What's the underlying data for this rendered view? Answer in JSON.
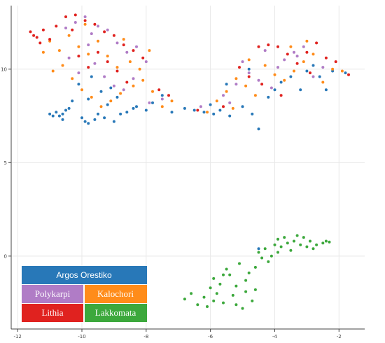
{
  "chart_data": {
    "type": "scatter",
    "title": "",
    "xlabel": "",
    "ylabel": "",
    "xlim": [
      -12.2,
      -1.2
    ],
    "ylim": [
      -3.9,
      13.4
    ],
    "grid": true,
    "x_ticks": [
      -12,
      -10,
      -8,
      -6,
      -4,
      -2
    ],
    "y_ticks": [
      0,
      5,
      10
    ],
    "x_tick_labels": [
      "-12",
      "-10",
      "-8",
      "-6",
      "-4",
      "-2"
    ],
    "y_tick_labels": [
      "0",
      "5",
      "10"
    ],
    "legend": {
      "placement": "bottom-left",
      "entries": [
        {
          "label": "Argos Orestiko",
          "color": "#2878b8"
        },
        {
          "label": "Polykarpi",
          "color": "#b07cc6"
        },
        {
          "label": "Kalochori",
          "color": "#ff8c1a"
        },
        {
          "label": "Lithia",
          "color": "#e0221f"
        },
        {
          "label": "Lakkomata",
          "color": "#3ca83c"
        }
      ]
    },
    "series": [
      {
        "name": "Argos Orestiko",
        "color": "#2878b8",
        "points": [
          [
            -11.0,
            7.6
          ],
          [
            -10.8,
            7.7
          ],
          [
            -10.9,
            7.5
          ],
          [
            -10.7,
            7.5
          ],
          [
            -10.6,
            7.6
          ],
          [
            -10.5,
            7.8
          ],
          [
            -10.4,
            7.9
          ],
          [
            -10.0,
            7.4
          ],
          [
            -9.9,
            7.2
          ],
          [
            -9.8,
            7.1
          ],
          [
            -9.6,
            7.3
          ],
          [
            -9.5,
            7.6
          ],
          [
            -9.3,
            7.4
          ],
          [
            -9.0,
            7.2
          ],
          [
            -8.8,
            7.6
          ],
          [
            -8.6,
            7.7
          ],
          [
            -8.3,
            8.0
          ],
          [
            -8.0,
            7.8
          ],
          [
            -9.2,
            8.1
          ],
          [
            -9.8,
            8.4
          ],
          [
            -10.1,
            9.2
          ],
          [
            -9.4,
            8.8
          ],
          [
            -9.1,
            9.0
          ],
          [
            -8.4,
            7.9
          ],
          [
            -7.8,
            8.2
          ],
          [
            -7.5,
            8.6
          ],
          [
            -7.2,
            7.7
          ],
          [
            -6.8,
            7.9
          ],
          [
            -6.5,
            7.8
          ],
          [
            -6.2,
            7.7
          ],
          [
            -5.9,
            7.6
          ],
          [
            -5.7,
            7.8
          ],
          [
            -5.4,
            7.5
          ],
          [
            -5.0,
            8.0
          ],
          [
            -4.7,
            7.6
          ],
          [
            -4.5,
            6.8
          ],
          [
            -4.2,
            8.5
          ],
          [
            -4.0,
            8.9
          ],
          [
            -3.8,
            9.3
          ],
          [
            -3.5,
            9.6
          ],
          [
            -3.2,
            8.9
          ],
          [
            -3.0,
            9.9
          ],
          [
            -2.8,
            10.2
          ],
          [
            -2.6,
            9.6
          ],
          [
            -2.4,
            8.9
          ],
          [
            -2.2,
            9.9
          ],
          [
            -1.8,
            9.8
          ],
          [
            -4.5,
            0.4
          ],
          [
            -4.8,
            10.0
          ],
          [
            -5.5,
            9.2
          ],
          [
            -6.0,
            8.1
          ],
          [
            -9.7,
            9.6
          ],
          [
            -10.3,
            8.3
          ],
          [
            -8.9,
            8.5
          ],
          [
            -10.6,
            7.3
          ]
        ]
      },
      {
        "name": "Polykarpi",
        "color": "#b07cc6",
        "points": [
          [
            -10.5,
            12.2
          ],
          [
            -10.2,
            12.5
          ],
          [
            -9.9,
            12.8
          ],
          [
            -9.7,
            11.9
          ],
          [
            -9.5,
            12.3
          ],
          [
            -9.2,
            12.1
          ],
          [
            -8.9,
            11.4
          ],
          [
            -8.6,
            10.9
          ],
          [
            -8.3,
            11.2
          ],
          [
            -8.0,
            10.4
          ],
          [
            -9.6,
            10.3
          ],
          [
            -9.3,
            9.6
          ],
          [
            -9.0,
            9.1
          ],
          [
            -8.7,
            8.9
          ],
          [
            -10.1,
            9.8
          ],
          [
            -10.4,
            10.6
          ],
          [
            -7.9,
            8.2
          ],
          [
            -7.5,
            8.4
          ],
          [
            -6.3,
            8.0
          ],
          [
            -5.6,
            8.6
          ],
          [
            -5.2,
            9.2
          ],
          [
            -4.8,
            9.8
          ],
          [
            -4.5,
            9.4
          ],
          [
            -4.1,
            9.0
          ],
          [
            -3.7,
            10.5
          ],
          [
            -3.4,
            10.9
          ],
          [
            -3.1,
            11.2
          ],
          [
            -2.8,
            9.6
          ],
          [
            -2.5,
            10.1
          ],
          [
            -3.3,
            10.7
          ],
          [
            -4.3,
            11.0
          ],
          [
            -5.0,
            10.4
          ],
          [
            -5.4,
            8.2
          ],
          [
            -9.8,
            11.3
          ],
          [
            -8.4,
            9.5
          ],
          [
            -3.9,
            10.1
          ]
        ]
      },
      {
        "name": "Kalochori",
        "color": "#ff8c1a",
        "points": [
          [
            -11.0,
            11.5
          ],
          [
            -10.7,
            11.0
          ],
          [
            -10.4,
            11.8
          ],
          [
            -10.1,
            11.2
          ],
          [
            -9.8,
            10.8
          ],
          [
            -9.5,
            11.5
          ],
          [
            -9.2,
            10.7
          ],
          [
            -8.9,
            10.1
          ],
          [
            -8.5,
            10.4
          ],
          [
            -8.2,
            10.0
          ],
          [
            -10.6,
            10.2
          ],
          [
            -10.3,
            9.5
          ],
          [
            -10.0,
            8.9
          ],
          [
            -9.7,
            8.5
          ],
          [
            -9.4,
            8.0
          ],
          [
            -9.1,
            8.3
          ],
          [
            -8.8,
            8.7
          ],
          [
            -8.4,
            9.1
          ],
          [
            -8.1,
            9.4
          ],
          [
            -7.8,
            8.8
          ],
          [
            -7.5,
            8.0
          ],
          [
            -7.2,
            8.3
          ],
          [
            -11.2,
            10.9
          ],
          [
            -10.9,
            9.9
          ],
          [
            -6.1,
            7.7
          ],
          [
            -5.8,
            8.3
          ],
          [
            -5.5,
            8.8
          ],
          [
            -5.2,
            9.5
          ],
          [
            -4.9,
            9.1
          ],
          [
            -4.6,
            8.6
          ],
          [
            -4.3,
            10.2
          ],
          [
            -4.0,
            9.7
          ],
          [
            -3.7,
            9.4
          ],
          [
            -3.4,
            9.9
          ],
          [
            -3.1,
            10.4
          ],
          [
            -2.8,
            10.8
          ],
          [
            -2.5,
            9.3
          ],
          [
            -2.2,
            10.0
          ],
          [
            -1.9,
            9.9
          ],
          [
            -3.0,
            11.5
          ],
          [
            -3.5,
            11.2
          ],
          [
            -4.8,
            10.5
          ],
          [
            -5.3,
            7.9
          ],
          [
            -9.9,
            12.4
          ],
          [
            -8.7,
            11.6
          ],
          [
            -7.9,
            11.0
          ]
        ]
      },
      {
        "name": "Lithia",
        "color": "#e0221f",
        "points": [
          [
            -11.6,
            12.0
          ],
          [
            -11.4,
            11.7
          ],
          [
            -11.2,
            12.1
          ],
          [
            -11.0,
            11.6
          ],
          [
            -11.3,
            11.4
          ],
          [
            -11.5,
            11.8
          ],
          [
            -10.8,
            12.3
          ],
          [
            -10.5,
            12.8
          ],
          [
            -10.2,
            12.9
          ],
          [
            -9.9,
            12.6
          ],
          [
            -9.6,
            12.4
          ],
          [
            -9.3,
            12.0
          ],
          [
            -9.0,
            11.8
          ],
          [
            -8.7,
            11.3
          ],
          [
            -8.4,
            11.0
          ],
          [
            -9.5,
            10.9
          ],
          [
            -9.2,
            10.4
          ],
          [
            -8.9,
            9.9
          ],
          [
            -8.6,
            9.3
          ],
          [
            -10.1,
            10.7
          ],
          [
            -9.8,
            10.1
          ],
          [
            -7.6,
            8.9
          ],
          [
            -7.3,
            8.6
          ],
          [
            -5.1,
            10.1
          ],
          [
            -4.8,
            9.6
          ],
          [
            -4.5,
            11.2
          ],
          [
            -4.2,
            11.3
          ],
          [
            -3.9,
            11.2
          ],
          [
            -3.6,
            10.8
          ],
          [
            -3.3,
            10.3
          ],
          [
            -3.0,
            10.9
          ],
          [
            -2.7,
            11.4
          ],
          [
            -2.4,
            10.6
          ],
          [
            -2.1,
            10.4
          ],
          [
            -1.7,
            9.7
          ],
          [
            -3.8,
            8.6
          ],
          [
            -4.4,
            9.2
          ],
          [
            -5.6,
            8.0
          ],
          [
            -6.4,
            7.8
          ],
          [
            -10.3,
            12.1
          ],
          [
            -8.1,
            10.6
          ],
          [
            -2.9,
            9.8
          ]
        ]
      },
      {
        "name": "Lakkomata",
        "color": "#3ca83c",
        "points": [
          [
            -6.8,
            -2.3
          ],
          [
            -6.6,
            -2.0
          ],
          [
            -6.4,
            -2.6
          ],
          [
            -6.2,
            -2.2
          ],
          [
            -6.0,
            -1.7
          ],
          [
            -5.9,
            -1.2
          ],
          [
            -5.8,
            -2.0
          ],
          [
            -5.7,
            -1.5
          ],
          [
            -5.6,
            -2.5
          ],
          [
            -5.5,
            -0.7
          ],
          [
            -5.4,
            -1.0
          ],
          [
            -5.3,
            -2.1
          ],
          [
            -5.2,
            -1.6
          ],
          [
            -5.1,
            -0.4
          ],
          [
            -5.0,
            -2.8
          ],
          [
            -4.9,
            -1.3
          ],
          [
            -4.8,
            -0.9
          ],
          [
            -4.7,
            -2.4
          ],
          [
            -4.6,
            -1.8
          ],
          [
            -4.5,
            0.2
          ],
          [
            -4.4,
            -0.1
          ],
          [
            -4.3,
            0.4
          ],
          [
            -4.2,
            -0.3
          ],
          [
            -4.1,
            0.0
          ],
          [
            -4.0,
            0.6
          ],
          [
            -3.9,
            0.9
          ],
          [
            -3.8,
            0.5
          ],
          [
            -3.7,
            1.0
          ],
          [
            -3.6,
            0.7
          ],
          [
            -3.5,
            0.3
          ],
          [
            -3.4,
            0.8
          ],
          [
            -3.3,
            1.1
          ],
          [
            -3.2,
            0.6
          ],
          [
            -3.1,
            1.0
          ],
          [
            -3.0,
            0.5
          ],
          [
            -2.9,
            0.8
          ],
          [
            -2.8,
            0.4
          ],
          [
            -2.7,
            0.6
          ],
          [
            -2.5,
            0.7
          ],
          [
            -2.4,
            0.8
          ],
          [
            -2.3,
            0.75
          ],
          [
            -6.1,
            -2.7
          ],
          [
            -5.9,
            -2.4
          ],
          [
            -5.6,
            -1.0
          ],
          [
            -5.2,
            -2.6
          ],
          [
            -4.9,
            -1.9
          ],
          [
            -4.6,
            -0.6
          ],
          [
            -3.9,
            0.2
          ]
        ]
      }
    ]
  }
}
